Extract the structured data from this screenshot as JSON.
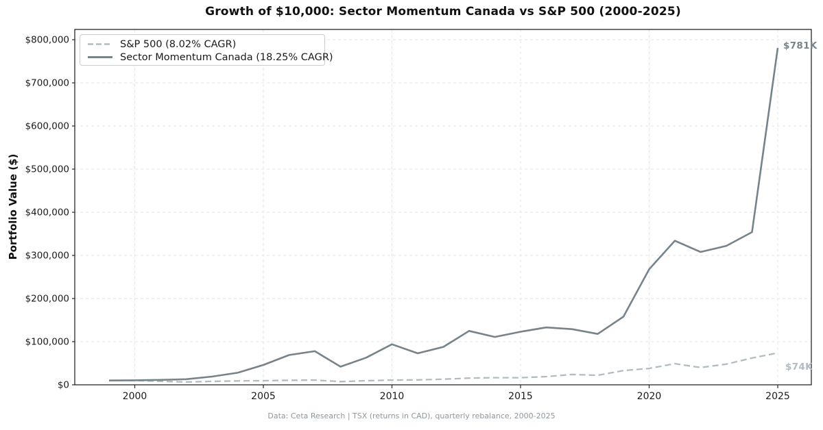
{
  "title": "Growth of $10,000: Sector Momentum Canada vs S&P 500 (2000-2025)",
  "y_axis_label": "Portfolio Value ($)",
  "footer": "Data: Ceta Research | TSX (returns in CAD), quarterly rebalance, 2000-2025",
  "annotations": [
    {
      "name": "momentum-end",
      "text": "$781K",
      "color": "#76838b"
    },
    {
      "name": "sp500-end",
      "text": "$74K",
      "color": "#b0bcc2"
    }
  ],
  "colors": {
    "sp500": "#b0bcc2",
    "momentum": "#76838b",
    "grid": "#e6e6e6",
    "spine": "#262626",
    "tick_label": "#1a1a1a",
    "background": "#ffffff"
  },
  "chart_data": {
    "type": "line",
    "title": "Growth of $10,000: Sector Momentum Canada vs S&P 500 (2000-2025)",
    "xlabel": "",
    "ylabel": "Portfolio Value ($)",
    "grid": true,
    "legend_position": "upper left",
    "xlim": [
      1997.7,
      2026.3
    ],
    "ylim": [
      0,
      824000
    ],
    "x": [
      1999,
      2000,
      2001,
      2002,
      2003,
      2004,
      2005,
      2006,
      2007,
      2008,
      2009,
      2010,
      2011,
      2012,
      2013,
      2014,
      2015,
      2016,
      2017,
      2018,
      2019,
      2020,
      2021,
      2022,
      2023,
      2024,
      2025
    ],
    "series": [
      {
        "name": "S&P 500 (8.02% CAGR)",
        "color": "#b0bcc2",
        "dash": true,
        "values": [
          10000,
          9800,
          8200,
          6500,
          8000,
          9000,
          9500,
          10500,
          11000,
          7500,
          9500,
          11000,
          11500,
          13000,
          15500,
          16500,
          16500,
          19000,
          24000,
          22000,
          33000,
          38000,
          49000,
          40000,
          48000,
          62000,
          74000
        ]
      },
      {
        "name": "Sector Momentum Canada (18.25% CAGR)",
        "color": "#76838b",
        "dash": false,
        "values": [
          10000,
          10500,
          11500,
          13000,
          19000,
          28000,
          46000,
          69000,
          78000,
          42000,
          63000,
          94000,
          73000,
          88000,
          125000,
          111000,
          123000,
          133000,
          129000,
          118000,
          158000,
          268000,
          334000,
          308000,
          322000,
          354000,
          781000
        ]
      }
    ],
    "y_ticks": [
      {
        "value": 0,
        "label": "$0"
      },
      {
        "value": 100000,
        "label": "$100,000"
      },
      {
        "value": 200000,
        "label": "$200,000"
      },
      {
        "value": 300000,
        "label": "$300,000"
      },
      {
        "value": 400000,
        "label": "$400,000"
      },
      {
        "value": 500000,
        "label": "$500,000"
      },
      {
        "value": 600000,
        "label": "$600,000"
      },
      {
        "value": 700000,
        "label": "$700,000"
      },
      {
        "value": 800000,
        "label": "$800,000"
      }
    ],
    "x_ticks": [
      {
        "value": 2000,
        "label": "2000"
      },
      {
        "value": 2005,
        "label": "2005"
      },
      {
        "value": 2010,
        "label": "2010"
      },
      {
        "value": 2015,
        "label": "2015"
      },
      {
        "value": 2020,
        "label": "2020"
      },
      {
        "value": 2025,
        "label": "2025"
      }
    ]
  }
}
